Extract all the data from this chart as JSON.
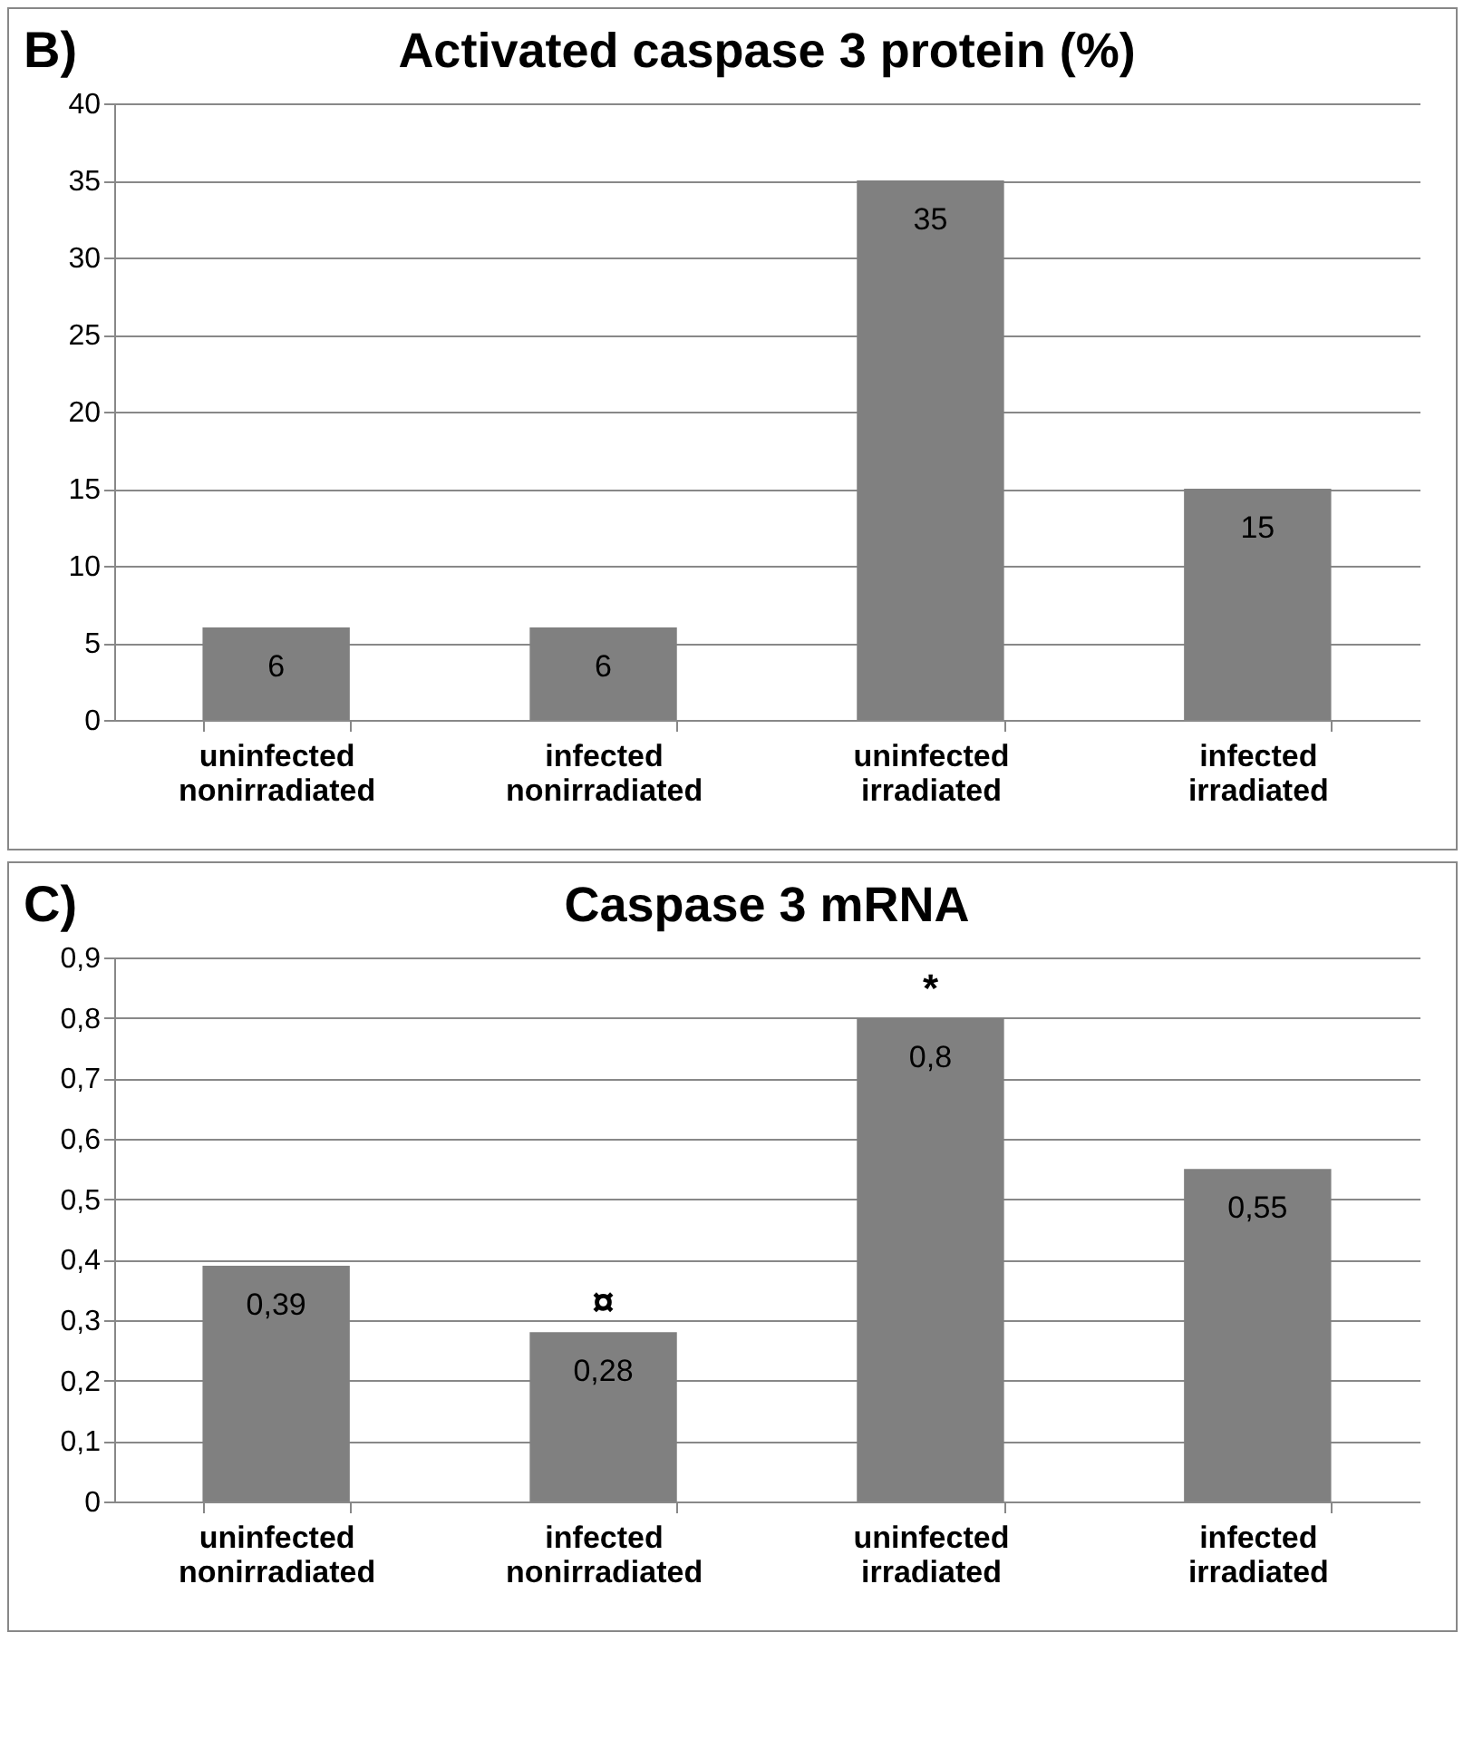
{
  "chart_data": [
    {
      "type": "bar",
      "title": "Activated caspase 3 protein (%)",
      "annotations": [
        "B)"
      ],
      "categories": [
        "uninfected nonirradiated",
        "infected nonirradiated",
        "uninfected irradiated",
        "infected irradiated"
      ],
      "series": [
        {
          "color": "#808080",
          "values": [
            6,
            6,
            35,
            15
          ]
        }
      ],
      "ylim": [
        0,
        40
      ],
      "yticks": [
        0,
        5,
        10,
        15,
        20,
        25,
        30,
        35,
        40
      ],
      "grid": "y",
      "legend": false,
      "data_labels": true
    },
    {
      "type": "bar",
      "title": "Caspase 3 mRNA",
      "annotations": [
        "C)",
        {
          "text": "¤",
          "x": "infected nonirradiated",
          "y": 0.28
        },
        {
          "text": "*",
          "x": "uninfected irradiated",
          "y": 0.8
        }
      ],
      "categories": [
        "uninfected nonirradiated",
        "infected nonirradiated",
        "uninfected irradiated",
        "infected irradiated"
      ],
      "series": [
        {
          "color": "#808080",
          "values": [
            0.39,
            0.28,
            0.8,
            0.55
          ]
        }
      ],
      "value_labels": [
        "0,39",
        "0,28",
        "0,8",
        "0,55"
      ],
      "ylim": [
        0,
        0.9
      ],
      "yticks": [
        0,
        {
          "value": 0.1,
          "label": "0,1"
        },
        {
          "value": 0.2,
          "label": "0,2"
        },
        {
          "value": 0.3,
          "label": "0,3"
        },
        {
          "value": 0.4,
          "label": "0,4"
        },
        {
          "value": 0.5,
          "label": "0,5"
        },
        {
          "value": 0.6,
          "label": "0,6"
        },
        {
          "value": 0.7,
          "label": "0,7"
        },
        {
          "value": 0.8,
          "label": "0,8"
        },
        {
          "value": 0.9,
          "label": "0,9"
        }
      ],
      "grid": "y",
      "legend": false
    }
  ]
}
